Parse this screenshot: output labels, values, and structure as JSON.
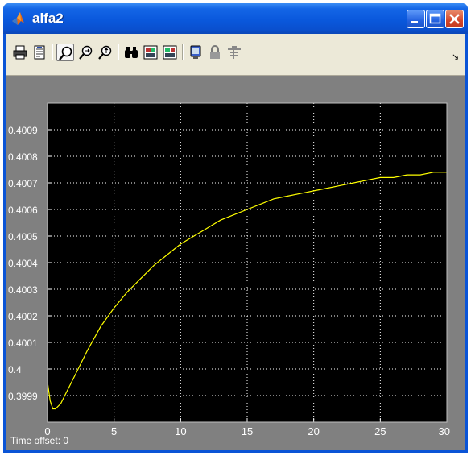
{
  "window": {
    "title": "alfa2",
    "title_icon": "matlab-logo-icon",
    "controls": [
      "minimize-icon",
      "maximize-icon",
      "close-icon"
    ]
  },
  "toolbar": {
    "buttons": [
      {
        "name": "print-button",
        "icon": "printer-icon"
      },
      {
        "name": "parameters-button",
        "icon": "parameters-icon"
      },
      {
        "name": "zoom-button",
        "icon": "zoom-magnifier-icon",
        "pressed": true
      },
      {
        "name": "zoom-x-button",
        "icon": "zoom-x-icon"
      },
      {
        "name": "zoom-y-button",
        "icon": "zoom-y-icon"
      },
      {
        "name": "autoscale-button",
        "icon": "binoculars-icon"
      },
      {
        "name": "save-axes-button",
        "icon": "save-axes-icon"
      },
      {
        "name": "restore-axes-button",
        "icon": "restore-axes-icon"
      },
      {
        "name": "floating-scope-button",
        "icon": "floating-scope-icon"
      },
      {
        "name": "lock-axes-button",
        "icon": "lock-icon"
      },
      {
        "name": "signal-selector-button",
        "icon": "signal-selector-icon"
      }
    ]
  },
  "footer": {
    "time_offset_label": "Time offset:",
    "time_offset_value": "0"
  },
  "colors": {
    "plot_background": "#000000",
    "trace": "#ffff00",
    "grid": "#ffffff",
    "tick_text": "#ffffff",
    "frame_background": "#808080"
  },
  "chart_data": {
    "type": "line",
    "title": "",
    "xlabel": "",
    "ylabel": "",
    "xlim": [
      0,
      30
    ],
    "ylim": [
      0.3998,
      0.401
    ],
    "x_ticks": [
      0,
      5,
      10,
      15,
      20,
      25,
      30
    ],
    "x_tick_labels": [
      "0",
      "5",
      "10",
      "15",
      "20",
      "25",
      "30"
    ],
    "y_ticks": [
      0.3999,
      0.4,
      0.4001,
      0.4002,
      0.4003,
      0.4004,
      0.4005,
      0.4006,
      0.4007,
      0.4008,
      0.4009
    ],
    "y_tick_labels": [
      "0.3999",
      "0.4",
      "0.4001",
      "0.4002",
      "0.4003",
      "0.4004",
      "0.4005",
      "0.4006",
      "0.4007",
      "0.4008",
      "0.4009"
    ],
    "grid": true,
    "series": [
      {
        "color": "#ffff00",
        "x": [
          0,
          0.2,
          0.4,
          0.6,
          1,
          1.5,
          2,
          3,
          4,
          5,
          6,
          7,
          8,
          9,
          10,
          11,
          12,
          13,
          14,
          15,
          16,
          17,
          18,
          19,
          20,
          21,
          22,
          23,
          24,
          25,
          26,
          27,
          28,
          29,
          30
        ],
        "y": [
          0.39995,
          0.39988,
          0.39985,
          0.39985,
          0.39987,
          0.39992,
          0.39997,
          0.40007,
          0.40016,
          0.40023,
          0.40029,
          0.40034,
          0.40039,
          0.40043,
          0.40047,
          0.4005,
          0.40053,
          0.40056,
          0.40058,
          0.4006,
          0.40062,
          0.40064,
          0.40065,
          0.40066,
          0.40067,
          0.40068,
          0.40069,
          0.4007,
          0.40071,
          0.40072,
          0.40072,
          0.40073,
          0.40073,
          0.40074,
          0.40074
        ]
      }
    ]
  }
}
